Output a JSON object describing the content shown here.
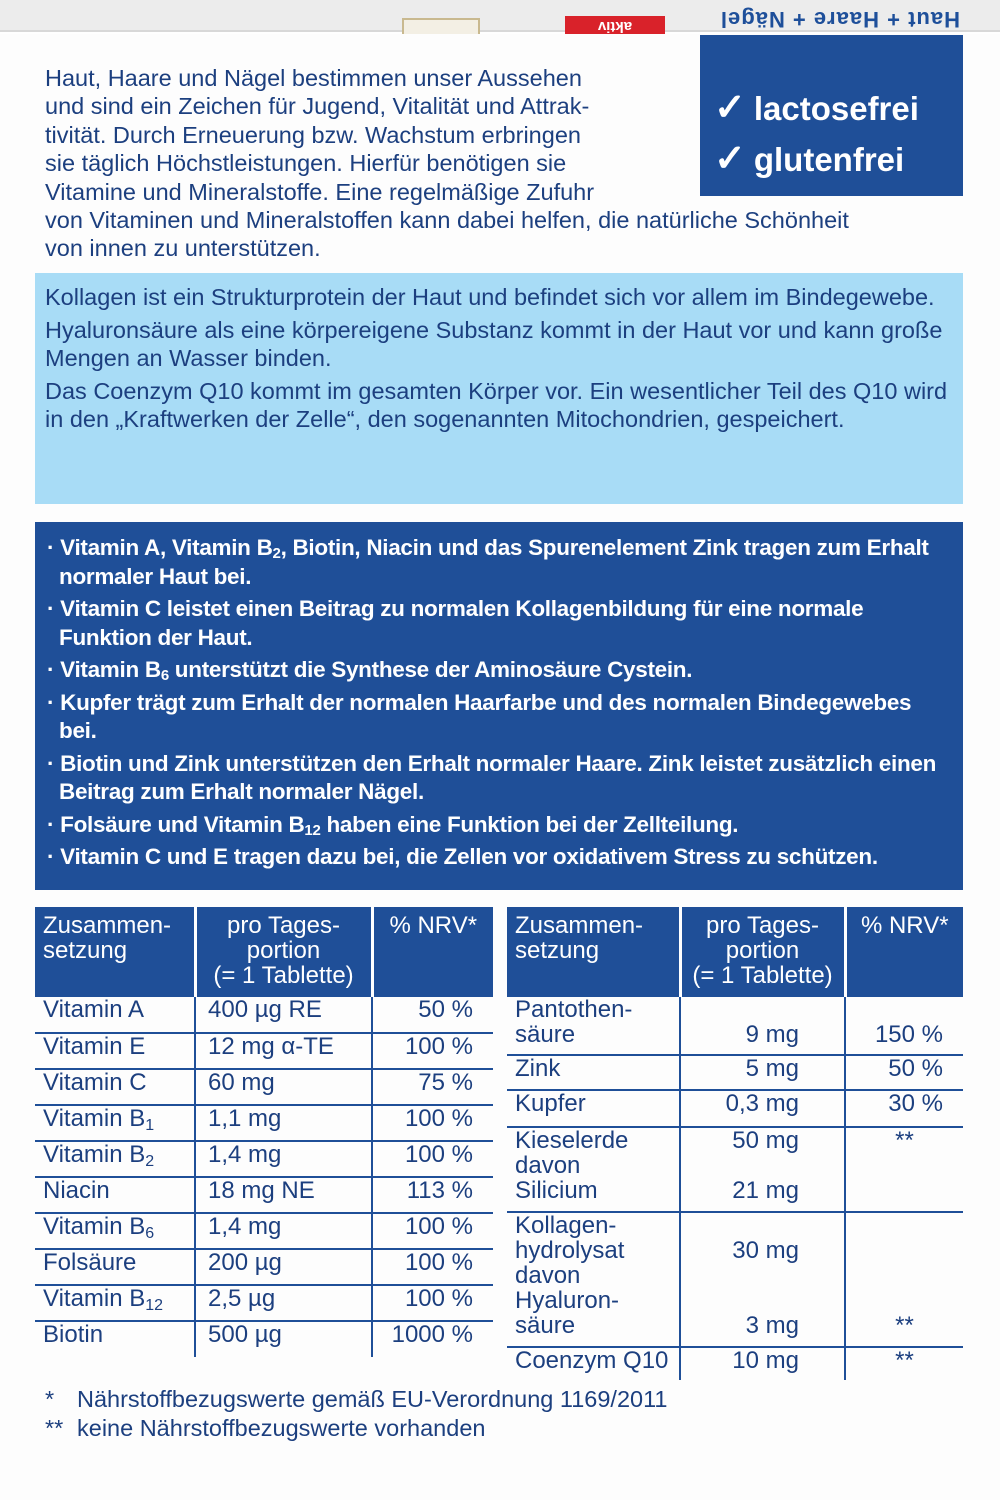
{
  "package_top": {
    "title": "Haut + Haare + Nägel",
    "badge": "aktiv"
  },
  "badges": [
    "lactosefrei",
    "glutenfrei"
  ],
  "badge_icon": "check-icon",
  "intro_lines": [
    "Haut, Haare und Nägel bestimmen unser Aussehen",
    "und sind ein Zeichen für Jugend, Vitalität und Attrak-",
    "tivität. Durch Erneuerung bzw. Wachstum erbringen",
    "sie täglich Höchstleistungen. Hierfür benötigen sie",
    "Vitamine und Mineralstoffe. Eine regelmäßige Zufuhr",
    "von Vitaminen und Mineralstoffen kann dabei helfen, die natürliche Schönheit",
    "von innen zu unterstützen."
  ],
  "info_paragraphs": [
    "Kollagen ist ein Strukturprotein der Haut und befindet sich vor allem im Bindegewebe.",
    "Hyaluronsäure als eine körpereigene Substanz kommt in der Haut vor und kann große Mengen an Wasser binden.",
    "Das Coenzym Q10 kommt im gesamten Körper vor. Ein wesentlicher Teil des Q10 wird in den „Kraftwerken der Zelle“, den sogenannten Mitochondrien, gespeichert."
  ],
  "claims": [
    [
      {
        "t": "· Vitamin A, Vitamin B"
      },
      {
        "sub": "2"
      },
      {
        "t": ", Biotin, Niacin und das Spurenelement Zink tragen zum Erhalt normaler Haut bei."
      }
    ],
    [
      {
        "t": "· Vitamin C leistet einen Beitrag zu normalen Kollagenbildung für eine normale Funktion der Haut."
      }
    ],
    [
      {
        "t": "· Vitamin B"
      },
      {
        "sub": "6"
      },
      {
        "t": " unterstützt die Synthese der Aminosäure Cystein."
      }
    ],
    [
      {
        "t": "· Kupfer trägt zum Erhalt der normalen Haarfarbe und des normalen Bindegewebes bei."
      }
    ],
    [
      {
        "t": "· Biotin und Zink unterstützen den Erhalt normaler Haare. Zink leistet zusätzlich einen Beitrag zum Erhalt normaler Nägel."
      }
    ],
    [
      {
        "t": "· Folsäure und Vitamin B"
      },
      {
        "sub": "12"
      },
      {
        "t": " haben eine Funktion bei der Zellteilung."
      }
    ],
    [
      {
        "t": "· Vitamin C und E tragen dazu bei, die Zellen vor oxidativem Stress zu schützen."
      }
    ]
  ],
  "table_headers": [
    "Zusammen-\nsetzung",
    "pro Tages-\nportion\n(= 1 Tablette)",
    "% NRV*"
  ],
  "table_left": [
    {
      "name": "Vitamin A",
      "sub": "",
      "amount": "400  µg RE",
      "nrv": "50 %"
    },
    {
      "name": "Vitamin E",
      "sub": "",
      "amount": "  12 mg α-TE",
      "nrv": "100 %"
    },
    {
      "name": "Vitamin C",
      "sub": "",
      "amount": "  60 mg",
      "nrv": "75 %"
    },
    {
      "name": "Vitamin B",
      "sub": "1",
      "amount": "  1,1 mg",
      "nrv": "100 %"
    },
    {
      "name": "Vitamin B",
      "sub": "2",
      "amount": " 1,4 mg",
      "nrv": "100 %"
    },
    {
      "name": "Niacin",
      "sub": "",
      "amount": "  18 mg NE",
      "nrv": "113 %"
    },
    {
      "name": "Vitamin B",
      "sub": "6",
      "amount": " 1,4 mg",
      "nrv": "100 %"
    },
    {
      "name": "Folsäure",
      "sub": "",
      "amount": "200  µg",
      "nrv": "100 %"
    },
    {
      "name": "Vitamin B",
      "sub": "12",
      "amount": " 2,5  µg",
      "nrv": "100 %"
    },
    {
      "name": "Biotin",
      "sub": "",
      "amount": "500  µg",
      "nrv": "1000 %"
    }
  ],
  "table_right": [
    {
      "name": "Pantothen-\nsäure",
      "sub": "",
      "amount": "\n9 mg",
      "nrv": "\n150 %"
    },
    {
      "name": "Zink",
      "sub": "",
      "amount": "5 mg",
      "nrv": "50 %"
    },
    {
      "name": "Kupfer",
      "sub": "",
      "amount": "0,3 mg",
      "nrv": "30 %"
    },
    {
      "name": "Kieselerde\ndavon\nSilicium",
      "sub": "",
      "amount": "50 mg\n\n21 mg",
      "nrv": "**\n\n"
    },
    {
      "name": "Kollagen-\nhydrolysat\ndavon\nHyaluron-\nsäure",
      "sub": "",
      "amount": "\n30 mg\n\n\n3 mg",
      "nrv": "\n\n\n\n**"
    },
    {
      "name": "Coenzym Q10",
      "sub": "",
      "amount": "10 mg",
      "nrv": "**"
    }
  ],
  "footnotes": [
    {
      "mark": "*",
      "text": "Nährstoffbezugswerte gemäß EU-Verordnung 1169/2011"
    },
    {
      "mark": "**",
      "text": "keine Nährstoffbezugswerte vorhanden"
    }
  ],
  "colors": {
    "dark_blue": "#1f4f98",
    "light_blue": "#a8dcf6",
    "text": "#1c3f7f",
    "red": "#d9222a"
  }
}
